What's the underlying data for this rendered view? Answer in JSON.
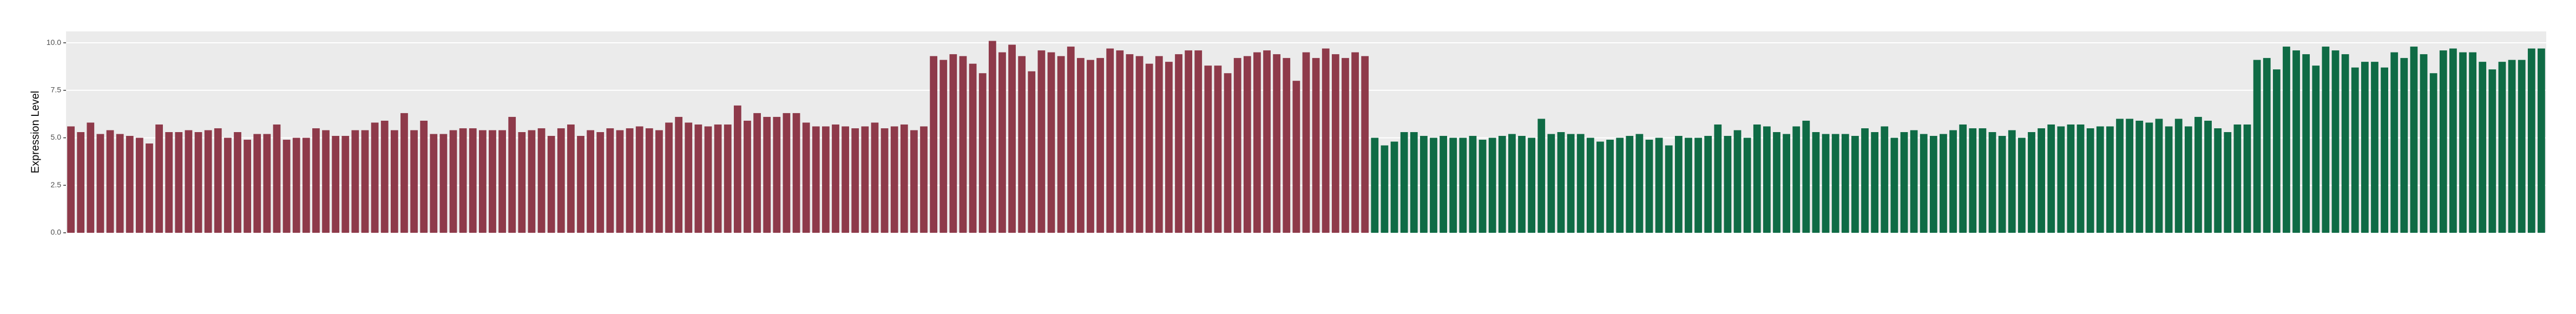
{
  "chart_data": {
    "type": "bar",
    "y_label": "Expression Level",
    "ylim": [
      0,
      10.6
    ],
    "yticks": [
      {
        "value": 0,
        "label": "0.0"
      },
      {
        "value": 2.5,
        "label": "2.5"
      },
      {
        "value": 5,
        "label": "5.0"
      },
      {
        "value": 7.5,
        "label": "7.5"
      },
      {
        "value": 10,
        "label": "10.0"
      }
    ],
    "grid": true,
    "series": [
      {
        "color": "#8e3a4a",
        "values": [
          5.6,
          5.3,
          5.8,
          5.2,
          5.4,
          5.2,
          5.1,
          5.0,
          4.7,
          5.7,
          5.3,
          5.3,
          5.4,
          5.3,
          5.4,
          5.5,
          5.0,
          5.3,
          4.9,
          5.2,
          5.2,
          5.7,
          4.9,
          5.0,
          5.0,
          5.5,
          5.4,
          5.1,
          5.1,
          5.4,
          5.4,
          5.8,
          5.9,
          5.4,
          6.3,
          5.4,
          5.9,
          5.2,
          5.2,
          5.4,
          5.5,
          5.5,
          5.4,
          5.4,
          5.4,
          6.1,
          5.3,
          5.4,
          5.5,
          5.1,
          5.5,
          5.7,
          5.1,
          5.4,
          5.3,
          5.5,
          5.4,
          5.5,
          5.6,
          5.5,
          5.4,
          5.8,
          6.1,
          5.8,
          5.7,
          5.6,
          5.7,
          5.7,
          6.7,
          5.9,
          6.3,
          6.1,
          6.1,
          6.3,
          6.3,
          5.8,
          5.6,
          5.6,
          5.7,
          5.6,
          5.5,
          5.6,
          5.8,
          5.5,
          5.6,
          5.7,
          5.4,
          5.6,
          9.3,
          9.1,
          9.4,
          9.3,
          8.9,
          8.4,
          10.1,
          9.5,
          9.9,
          9.3,
          8.5,
          9.6,
          9.5,
          9.3,
          9.8,
          9.2,
          9.1,
          9.2,
          9.7,
          9.6,
          9.4,
          9.3,
          8.9,
          9.3,
          9.0,
          9.4,
          9.6,
          9.6,
          8.8,
          8.8,
          8.4,
          9.2,
          9.3,
          9.5,
          9.6,
          9.4,
          9.2,
          8.0,
          9.5,
          9.2,
          9.7,
          9.4,
          9.2,
          9.5,
          9.3,
          null,
          null,
          null,
          null,
          null,
          null,
          null,
          null,
          null,
          null,
          null,
          null,
          null,
          null,
          null,
          null,
          null,
          null,
          null,
          null,
          null,
          null,
          null,
          null,
          null,
          null,
          null,
          null,
          null,
          null,
          null,
          null,
          null,
          null,
          null,
          null,
          null,
          null,
          null,
          null,
          null,
          null,
          null,
          null,
          null,
          null,
          null,
          null,
          null,
          null,
          null,
          null,
          null,
          null,
          null,
          null,
          null,
          null,
          null,
          null,
          null,
          null,
          null,
          null,
          null,
          null,
          null,
          null,
          null,
          null,
          null,
          null,
          null,
          null,
          null,
          null,
          null,
          null,
          null,
          null,
          null,
          null,
          null,
          null,
          null,
          null,
          null,
          null,
          null,
          null,
          null,
          null,
          null,
          null,
          null,
          null,
          null,
          null,
          null,
          null,
          null,
          null,
          null,
          null,
          null,
          null,
          null,
          null,
          null,
          null,
          null,
          null,
          null,
          null,
          null,
          null,
          null,
          null,
          null,
          null
        ]
      },
      {
        "color": "#0f6b45",
        "values": [
          null,
          null,
          null,
          null,
          null,
          null,
          null,
          null,
          null,
          null,
          null,
          null,
          null,
          null,
          null,
          null,
          null,
          null,
          null,
          null,
          null,
          null,
          null,
          null,
          null,
          null,
          null,
          null,
          null,
          null,
          null,
          null,
          null,
          null,
          null,
          null,
          null,
          null,
          null,
          null,
          null,
          null,
          null,
          null,
          null,
          null,
          null,
          null,
          null,
          null,
          null,
          null,
          null,
          null,
          null,
          null,
          null,
          null,
          null,
          null,
          null,
          null,
          null,
          null,
          null,
          null,
          null,
          null,
          null,
          null,
          null,
          null,
          null,
          null,
          null,
          null,
          null,
          null,
          null,
          null,
          null,
          null,
          null,
          null,
          null,
          null,
          null,
          null,
          null,
          null,
          null,
          null,
          null,
          null,
          null,
          null,
          null,
          null,
          null,
          null,
          null,
          null,
          null,
          null,
          null,
          null,
          null,
          null,
          null,
          null,
          null,
          null,
          null,
          null,
          null,
          null,
          null,
          null,
          null,
          null,
          null,
          null,
          null,
          null,
          null,
          null,
          null,
          null,
          null,
          null,
          null,
          null,
          null,
          5.0,
          4.6,
          4.8,
          5.3,
          5.3,
          5.1,
          5.0,
          5.1,
          5.0,
          5.0,
          5.1,
          4.9,
          5.0,
          5.1,
          5.2,
          5.1,
          5.0,
          6.0,
          5.2,
          5.3,
          5.2,
          5.2,
          5.0,
          4.8,
          4.9,
          5.0,
          5.1,
          5.2,
          4.9,
          5.0,
          4.6,
          5.1,
          5.0,
          5.0,
          5.1,
          5.7,
          5.1,
          5.4,
          5.0,
          5.7,
          5.6,
          5.3,
          5.2,
          5.6,
          5.9,
          5.3,
          5.2,
          5.2,
          5.2,
          5.1,
          5.5,
          5.3,
          5.6,
          5.0,
          5.3,
          5.4,
          5.2,
          5.1,
          5.2,
          5.4,
          5.7,
          5.5,
          5.5,
          5.3,
          5.1,
          5.4,
          5.0,
          5.3,
          5.5,
          5.7,
          5.6,
          5.7,
          5.7,
          5.5,
          5.6,
          5.6,
          6.0,
          6.0,
          5.9,
          5.8,
          6.0,
          5.6,
          6.0,
          5.6,
          6.1,
          5.9,
          5.5,
          5.3,
          5.7,
          5.7,
          9.1,
          9.2,
          8.6,
          9.8,
          9.6,
          9.4,
          8.8,
          9.8,
          9.6,
          9.4,
          8.7,
          9.0,
          9.0,
          8.7,
          9.5,
          9.2,
          9.8,
          9.4,
          8.4,
          9.6,
          9.7,
          9.5,
          9.5,
          9.0,
          8.6,
          9.0,
          9.1,
          9.1,
          9.7,
          9.7
        ]
      }
    ]
  }
}
